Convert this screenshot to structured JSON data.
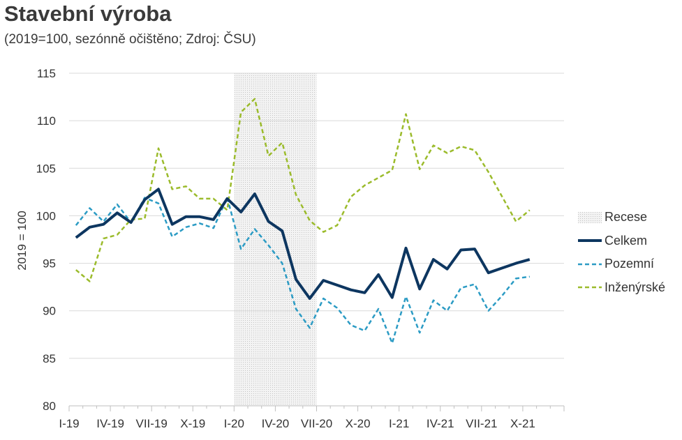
{
  "title": "Stavební výroba",
  "subtitle": "(2019=100, sezónně očištěno; Zdroj: ČSU)",
  "chart_data": {
    "type": "line",
    "ylabel": "2019 = 100",
    "ylim": [
      80,
      115
    ],
    "yticks": [
      80,
      85,
      90,
      95,
      100,
      105,
      110,
      115
    ],
    "xtick_labels": [
      "I-19",
      "IV-19",
      "VII-19",
      "X-19",
      "I-20",
      "IV-20",
      "VII-20",
      "X-20",
      "I-21",
      "IV-21",
      "VII-21",
      "X-21"
    ],
    "months": [
      "I-19",
      "II-19",
      "III-19",
      "IV-19",
      "V-19",
      "VI-19",
      "VII-19",
      "VIII-19",
      "IX-19",
      "X-19",
      "XI-19",
      "XII-19",
      "I-20",
      "II-20",
      "III-20",
      "IV-20",
      "V-20",
      "VI-20",
      "VII-20",
      "VIII-20",
      "IX-20",
      "X-20",
      "XI-20",
      "XII-20",
      "I-21",
      "II-21",
      "III-21",
      "IV-21",
      "V-21",
      "VI-21",
      "VII-21",
      "VIII-21",
      "IX-21",
      "X-21",
      "XI-21",
      "XII-21"
    ],
    "recession": {
      "label": "Recese",
      "from": "I-20",
      "to": "VI-20",
      "color": "#d9d9d9"
    },
    "grid": true,
    "legend_position": "right",
    "series": [
      {
        "name": "Celkem",
        "color": "#0d3660",
        "style": "solid",
        "values": [
          97.7,
          98.8,
          99.1,
          100.3,
          99.3,
          101.7,
          102.8,
          99.1,
          99.9,
          99.9,
          99.6,
          101.8,
          100.4,
          102.3,
          99.4,
          98.4,
          93.3,
          91.3,
          93.2,
          92.7,
          92.2,
          91.9,
          93.8,
          91.4,
          96.6,
          92.3,
          95.4,
          94.4,
          96.4,
          96.5,
          94.0,
          94.5,
          95.0,
          95.4
        ]
      },
      {
        "name": "Pozemní",
        "color": "#2b9bc4",
        "style": "dashed",
        "values": [
          99.0,
          100.8,
          99.4,
          101.2,
          99.3,
          101.9,
          101.3,
          97.8,
          98.8,
          99.2,
          98.7,
          101.9,
          96.5,
          98.6,
          96.9,
          95.0,
          90.2,
          88.2,
          91.3,
          90.3,
          88.5,
          87.9,
          90.2,
          86.6,
          91.5,
          87.7,
          91.1,
          90.0,
          92.4,
          92.8,
          90.0,
          91.6,
          93.4,
          93.6
        ]
      },
      {
        "name": "Inženýrské",
        "color": "#9bbb2b",
        "style": "dashed",
        "values": [
          94.3,
          93.1,
          97.6,
          98.0,
          99.6,
          99.7,
          107.1,
          102.8,
          103.1,
          101.8,
          101.8,
          100.6,
          110.9,
          112.3,
          106.3,
          107.7,
          102.2,
          99.5,
          98.3,
          99.0,
          102.0,
          103.2,
          104.0,
          104.8,
          110.7,
          104.9,
          107.4,
          106.6,
          107.3,
          106.9,
          104.6,
          102.0,
          99.4,
          100.6
        ]
      }
    ]
  }
}
